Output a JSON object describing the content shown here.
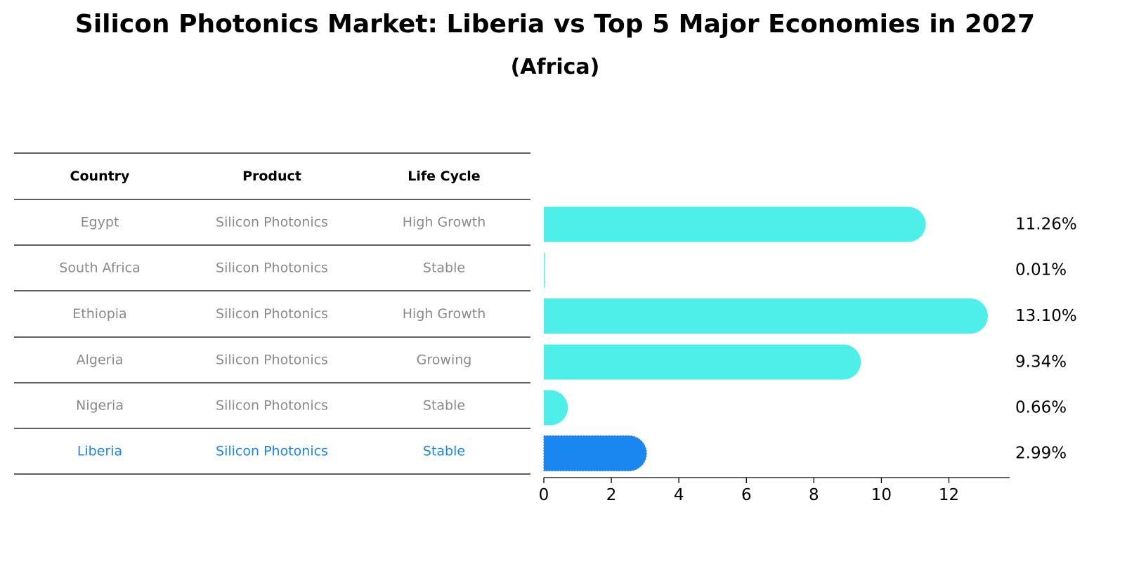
{
  "title": "Silicon Photonics Market: Liberia vs Top 5 Major Economies in 2027",
  "subtitle": "(Africa)",
  "colors": {
    "bar": "#4eeee9",
    "highlight": "#1a86f0",
    "muted_text": "#8a8a8a",
    "header_text": "#000000"
  },
  "table": {
    "headers": [
      "Country",
      "Product",
      "Life Cycle"
    ],
    "rows": [
      {
        "country": "Egypt",
        "product": "Silicon Photonics",
        "life_cycle": "High Growth",
        "highlight": false
      },
      {
        "country": "South Africa",
        "product": "Silicon Photonics",
        "life_cycle": "Stable",
        "highlight": false
      },
      {
        "country": "Ethiopia",
        "product": "Silicon Photonics",
        "life_cycle": "High Growth",
        "highlight": false
      },
      {
        "country": "Algeria",
        "product": "Silicon Photonics",
        "life_cycle": "Growing",
        "highlight": false
      },
      {
        "country": "Nigeria",
        "product": "Silicon Photonics",
        "life_cycle": "Stable",
        "highlight": false
      },
      {
        "country": "Liberia",
        "product": "Silicon Photonics",
        "life_cycle": "Stable",
        "highlight": true
      }
    ]
  },
  "chart_data": {
    "type": "bar",
    "orientation": "horizontal",
    "title": "Silicon Photonics Market: Liberia vs Top 5 Major Economies in 2027",
    "subtitle": "(Africa)",
    "categories": [
      "Egypt",
      "South Africa",
      "Ethiopia",
      "Algeria",
      "Nigeria",
      "Liberia"
    ],
    "values": [
      11.26,
      0.01,
      13.1,
      9.34,
      0.66,
      2.99
    ],
    "value_labels": [
      "11.26%",
      "0.01%",
      "13.10%",
      "9.34%",
      "0.66%",
      "2.99%"
    ],
    "highlight_category": "Liberia",
    "xlim": [
      0,
      13.8
    ],
    "xticks": [
      0,
      2,
      4,
      6,
      8,
      10,
      12
    ],
    "xlabel": "",
    "ylabel": "",
    "grid": false
  }
}
